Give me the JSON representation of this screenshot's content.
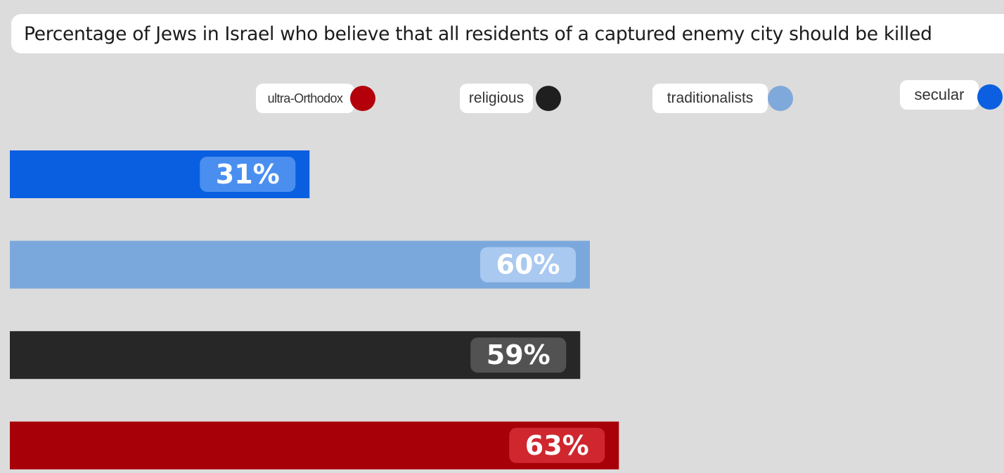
{
  "chart_data": {
    "type": "bar",
    "orientation": "horizontal",
    "title": "Percentage of Jews in Israel who believe that all residents of a captured enemy city should be killed",
    "categories": [
      "secular",
      "traditionalists",
      "religious",
      "ultra-Orthodox"
    ],
    "values": [
      31,
      60,
      59,
      63
    ],
    "value_labels": [
      "31%",
      "60%",
      "59%",
      "63%"
    ],
    "colors": [
      "#0a5fe0",
      "#7ba8dc",
      "#272727",
      "#a80008"
    ],
    "legend": [
      {
        "label": "ultra-Orthodox",
        "color": "#b3000a"
      },
      {
        "label": "religious",
        "color": "#1f1f1f"
      },
      {
        "label": "traditionalists",
        "color": "#7fa9da"
      },
      {
        "label": "secular",
        "color": "#0b5fe0"
      }
    ],
    "legend_position": "top",
    "xlim": [
      0,
      100
    ],
    "grid": false,
    "xlabel": "",
    "ylabel": ""
  }
}
